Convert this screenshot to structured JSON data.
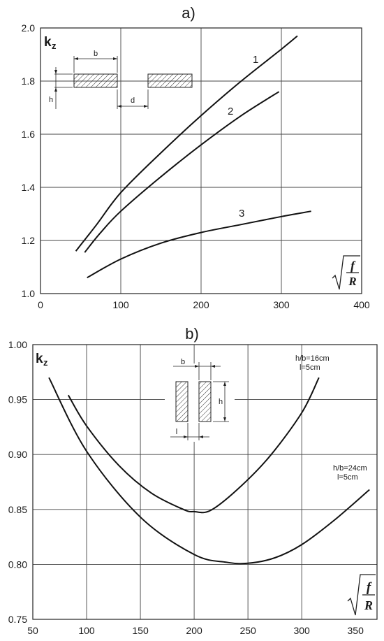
{
  "chart_data": [
    {
      "type": "line",
      "panel_label": "a)",
      "ylabel_main": "k",
      "ylabel_sub": "z",
      "xlabel_top": "f",
      "xlabel_bottom": "R",
      "xlim": [
        0,
        400
      ],
      "ylim": [
        1.0,
        2.0
      ],
      "xticks": [
        "0",
        "100",
        "200",
        "300",
        "400"
      ],
      "yticks": [
        "1.0",
        "1.2",
        "1.4",
        "1.6",
        "1.8",
        "2.0"
      ],
      "xtick_values": [
        0,
        100,
        200,
        300,
        400
      ],
      "ytick_values": [
        1.0,
        1.2,
        1.4,
        1.6,
        1.8,
        2.0
      ],
      "grid": true,
      "inset": {
        "b_label": "b",
        "h_label": "h",
        "d_label": "d"
      },
      "series": [
        {
          "name": "1",
          "x": [
            44,
            70,
            100,
            150,
            200,
            250,
            300,
            320
          ],
          "y": [
            1.16,
            1.26,
            1.38,
            1.53,
            1.67,
            1.8,
            1.92,
            1.97
          ]
        },
        {
          "name": "2",
          "x": [
            55,
            75,
            100,
            150,
            200,
            250,
            297
          ],
          "y": [
            1.155,
            1.23,
            1.31,
            1.44,
            1.56,
            1.67,
            1.76
          ]
        },
        {
          "name": "3",
          "x": [
            58,
            100,
            150,
            200,
            250,
            300,
            337
          ],
          "y": [
            1.06,
            1.13,
            1.19,
            1.23,
            1.26,
            1.29,
            1.31
          ]
        }
      ]
    },
    {
      "type": "line",
      "panel_label": "b)",
      "ylabel_main": "k",
      "ylabel_sub": "z",
      "xlabel_top": "f",
      "xlabel_bottom": "R",
      "xlim": [
        50,
        370
      ],
      "ylim": [
        0.75,
        1.0
      ],
      "xticks": [
        "50",
        "100",
        "150",
        "200",
        "250",
        "300",
        "350"
      ],
      "yticks": [
        "0.75",
        "0.80",
        "0.85",
        "0.90",
        "0.95",
        "1.00"
      ],
      "xtick_values": [
        50,
        100,
        150,
        200,
        250,
        300,
        350
      ],
      "ytick_values": [
        0.75,
        0.8,
        0.85,
        0.9,
        0.95,
        1.0
      ],
      "grid": true,
      "inset": {
        "b_label": "b",
        "h_label": "h",
        "l_label": "l"
      },
      "series": [
        {
          "name": "h/b=16cm",
          "name_line2": "l=5cm",
          "x": [
            83,
            100,
            130,
            160,
            190,
            200,
            215,
            240,
            270,
            300,
            316
          ],
          "y": [
            0.954,
            0.926,
            0.89,
            0.865,
            0.85,
            0.848,
            0.849,
            0.868,
            0.898,
            0.938,
            0.97
          ]
        },
        {
          "name": "h/b=24cm",
          "name_line2": "l=5cm",
          "x": [
            65,
            100,
            150,
            200,
            230,
            250,
            275,
            300,
            330,
            363
          ],
          "y": [
            0.97,
            0.903,
            0.843,
            0.809,
            0.802,
            0.801,
            0.806,
            0.818,
            0.84,
            0.868
          ]
        }
      ]
    }
  ]
}
